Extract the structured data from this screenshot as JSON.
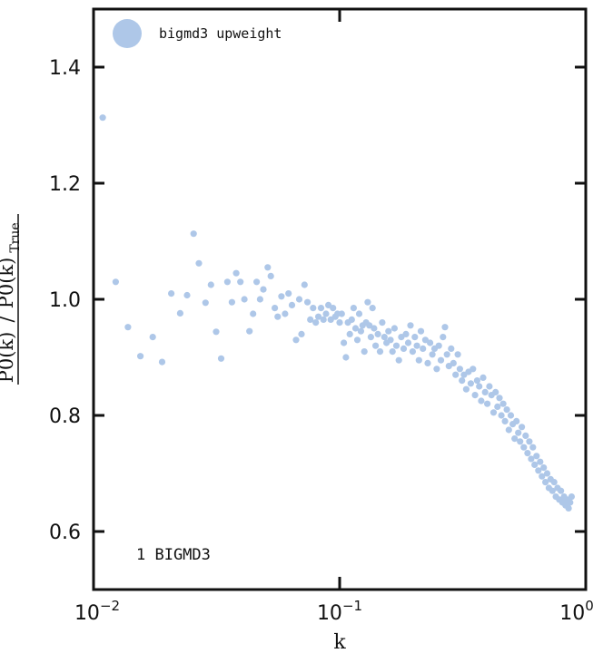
{
  "chart_data": {
    "type": "scatter",
    "title": "",
    "xlabel": "k",
    "ylabel": {
      "num": "P0(k)",
      "den": "P0(k)",
      "den_sub": "True"
    },
    "xscale": "log",
    "xlim": [
      0.01,
      1.0
    ],
    "ylim": [
      0.5,
      1.5
    ],
    "xticks": [
      {
        "value": 0.01,
        "base": "10",
        "exp": "−2"
      },
      {
        "value": 0.1,
        "base": "10",
        "exp": "−1"
      },
      {
        "value": 1.0,
        "base": "10",
        "exp": "0"
      }
    ],
    "yticks": [
      {
        "value": 0.6,
        "label": "0.6"
      },
      {
        "value": 0.8,
        "label": "0.8"
      },
      {
        "value": 1.0,
        "label": "1.0"
      },
      {
        "value": 1.2,
        "label": "1.2"
      },
      {
        "value": 1.4,
        "label": "1.4"
      }
    ],
    "grid": false,
    "legend": {
      "position": "top-left",
      "entries": [
        "bigmd3 upweight"
      ]
    },
    "annotation": "1 BIGMD3",
    "marker_color": "#aec7e8",
    "series": [
      {
        "name": "bigmd3 upweight",
        "points": [
          [
            0.0109,
            1.313
          ],
          [
            0.0123,
            1.03
          ],
          [
            0.0138,
            0.952
          ],
          [
            0.0155,
            0.902
          ],
          [
            0.0174,
            0.935
          ],
          [
            0.019,
            0.892
          ],
          [
            0.0207,
            1.01
          ],
          [
            0.0225,
            0.976
          ],
          [
            0.024,
            1.007
          ],
          [
            0.0255,
            1.113
          ],
          [
            0.0268,
            1.062
          ],
          [
            0.0285,
            0.994
          ],
          [
            0.03,
            1.025
          ],
          [
            0.0315,
            0.944
          ],
          [
            0.033,
            0.898
          ],
          [
            0.035,
            1.03
          ],
          [
            0.0365,
            0.995
          ],
          [
            0.038,
            1.045
          ],
          [
            0.0395,
            1.03
          ],
          [
            0.041,
            1.0
          ],
          [
            0.043,
            0.945
          ],
          [
            0.0445,
            0.975
          ],
          [
            0.046,
            1.03
          ],
          [
            0.0475,
            1.0
          ],
          [
            0.049,
            1.017
          ],
          [
            0.051,
            1.055
          ],
          [
            0.0525,
            1.04
          ],
          [
            0.0545,
            0.985
          ],
          [
            0.056,
            0.97
          ],
          [
            0.058,
            1.005
          ],
          [
            0.06,
            0.975
          ],
          [
            0.062,
            1.01
          ],
          [
            0.064,
            0.99
          ],
          [
            0.0665,
            0.93
          ],
          [
            0.0685,
            1.0
          ],
          [
            0.07,
            0.94
          ],
          [
            0.072,
            1.025
          ],
          [
            0.074,
            0.995
          ],
          [
            0.076,
            0.965
          ],
          [
            0.078,
            0.985
          ],
          [
            0.08,
            0.96
          ],
          [
            0.082,
            0.97
          ],
          [
            0.084,
            0.985
          ],
          [
            0.086,
            0.965
          ],
          [
            0.088,
            0.975
          ],
          [
            0.09,
            0.99
          ],
          [
            0.092,
            0.965
          ],
          [
            0.094,
            0.985
          ],
          [
            0.096,
            0.97
          ],
          [
            0.098,
            0.975
          ],
          [
            0.1,
            0.96
          ],
          [
            0.102,
            0.975
          ],
          [
            0.104,
            0.925
          ],
          [
            0.106,
            0.9
          ],
          [
            0.108,
            0.96
          ],
          [
            0.11,
            0.94
          ],
          [
            0.112,
            0.965
          ],
          [
            0.114,
            0.985
          ],
          [
            0.116,
            0.95
          ],
          [
            0.118,
            0.93
          ],
          [
            0.12,
            0.975
          ],
          [
            0.122,
            0.945
          ],
          [
            0.124,
            0.955
          ],
          [
            0.126,
            0.91
          ],
          [
            0.128,
            0.96
          ],
          [
            0.13,
            0.995
          ],
          [
            0.132,
            0.955
          ],
          [
            0.134,
            0.935
          ],
          [
            0.136,
            0.985
          ],
          [
            0.138,
            0.95
          ],
          [
            0.14,
            0.92
          ],
          [
            0.143,
            0.94
          ],
          [
            0.146,
            0.91
          ],
          [
            0.149,
            0.96
          ],
          [
            0.152,
            0.935
          ],
          [
            0.155,
            0.925
          ],
          [
            0.158,
            0.945
          ],
          [
            0.161,
            0.93
          ],
          [
            0.164,
            0.91
          ],
          [
            0.167,
            0.95
          ],
          [
            0.17,
            0.92
          ],
          [
            0.174,
            0.895
          ],
          [
            0.178,
            0.935
          ],
          [
            0.182,
            0.915
          ],
          [
            0.186,
            0.94
          ],
          [
            0.19,
            0.925
          ],
          [
            0.194,
            0.955
          ],
          [
            0.198,
            0.91
          ],
          [
            0.202,
            0.935
          ],
          [
            0.206,
            0.92
          ],
          [
            0.21,
            0.895
          ],
          [
            0.214,
            0.945
          ],
          [
            0.218,
            0.915
          ],
          [
            0.223,
            0.93
          ],
          [
            0.228,
            0.89
          ],
          [
            0.233,
            0.925
          ],
          [
            0.238,
            0.905
          ],
          [
            0.243,
            0.915
          ],
          [
            0.248,
            0.88
          ],
          [
            0.253,
            0.92
          ],
          [
            0.258,
            0.895
          ],
          [
            0.263,
            0.935
          ],
          [
            0.268,
            0.952
          ],
          [
            0.273,
            0.905
          ],
          [
            0.278,
            0.885
          ],
          [
            0.284,
            0.915
          ],
          [
            0.29,
            0.89
          ],
          [
            0.296,
            0.87
          ],
          [
            0.302,
            0.905
          ],
          [
            0.308,
            0.88
          ],
          [
            0.314,
            0.86
          ],
          [
            0.32,
            0.87
          ],
          [
            0.327,
            0.845
          ],
          [
            0.334,
            0.875
          ],
          [
            0.341,
            0.855
          ],
          [
            0.348,
            0.88
          ],
          [
            0.355,
            0.835
          ],
          [
            0.362,
            0.86
          ],
          [
            0.369,
            0.85
          ],
          [
            0.376,
            0.825
          ],
          [
            0.383,
            0.865
          ],
          [
            0.39,
            0.84
          ],
          [
            0.398,
            0.82
          ],
          [
            0.406,
            0.85
          ],
          [
            0.414,
            0.835
          ],
          [
            0.422,
            0.805
          ],
          [
            0.43,
            0.84
          ],
          [
            0.438,
            0.815
          ],
          [
            0.446,
            0.83
          ],
          [
            0.454,
            0.8
          ],
          [
            0.462,
            0.82
          ],
          [
            0.47,
            0.79
          ],
          [
            0.478,
            0.81
          ],
          [
            0.487,
            0.775
          ],
          [
            0.496,
            0.8
          ],
          [
            0.505,
            0.785
          ],
          [
            0.514,
            0.76
          ],
          [
            0.523,
            0.79
          ],
          [
            0.532,
            0.77
          ],
          [
            0.541,
            0.755
          ],
          [
            0.55,
            0.78
          ],
          [
            0.56,
            0.745
          ],
          [
            0.57,
            0.765
          ],
          [
            0.58,
            0.735
          ],
          [
            0.59,
            0.755
          ],
          [
            0.6,
            0.725
          ],
          [
            0.61,
            0.745
          ],
          [
            0.62,
            0.715
          ],
          [
            0.631,
            0.73
          ],
          [
            0.642,
            0.705
          ],
          [
            0.653,
            0.72
          ],
          [
            0.664,
            0.695
          ],
          [
            0.675,
            0.71
          ],
          [
            0.686,
            0.685
          ],
          [
            0.697,
            0.7
          ],
          [
            0.708,
            0.675
          ],
          [
            0.72,
            0.69
          ],
          [
            0.732,
            0.67
          ],
          [
            0.744,
            0.685
          ],
          [
            0.756,
            0.66
          ],
          [
            0.768,
            0.675
          ],
          [
            0.78,
            0.655
          ],
          [
            0.792,
            0.67
          ],
          [
            0.804,
            0.65
          ],
          [
            0.816,
            0.66
          ],
          [
            0.828,
            0.645
          ],
          [
            0.84,
            0.655
          ],
          [
            0.852,
            0.64
          ],
          [
            0.864,
            0.65
          ],
          [
            0.876,
            0.66
          ]
        ]
      }
    ]
  }
}
